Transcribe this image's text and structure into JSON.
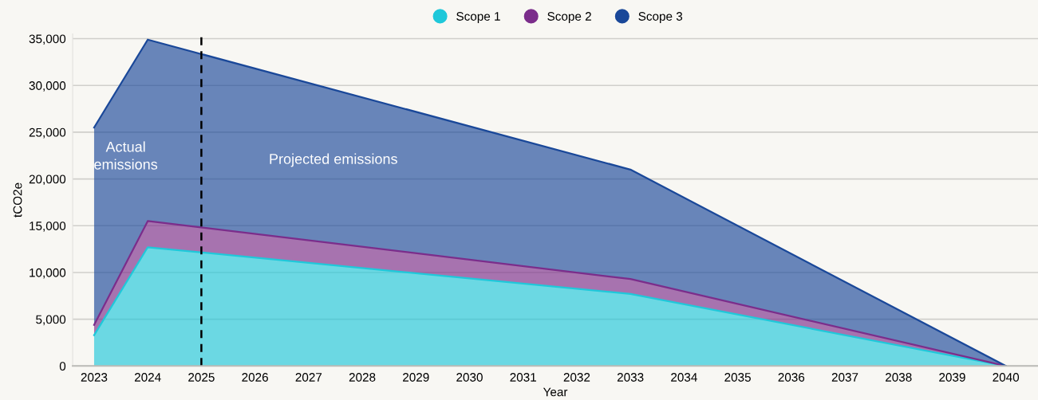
{
  "chart_data": {
    "type": "area",
    "stacked": true,
    "xlabel": "Year",
    "ylabel": "tCO2e",
    "x": [
      2023,
      2024,
      2033,
      2040
    ],
    "series": [
      {
        "name": "Scope 1",
        "color": "#1fc8da",
        "values": [
          3300,
          12700,
          7700,
          0
        ]
      },
      {
        "name": "Scope 2",
        "color": "#7b2d8b",
        "values": [
          1100,
          2800,
          1600,
          0
        ]
      },
      {
        "name": "Scope 3",
        "color": "#1a4899",
        "values": [
          21100,
          19400,
          11700,
          0
        ]
      }
    ],
    "xlim": [
      2022.6,
      2040.6
    ],
    "xticks": [
      2023,
      2024,
      2025,
      2026,
      2027,
      2028,
      2029,
      2030,
      2031,
      2032,
      2033,
      2034,
      2035,
      2036,
      2037,
      2038,
      2039,
      2040
    ],
    "ylim": [
      0,
      35500
    ],
    "yticks": [
      {
        "value": 0,
        "label": "0"
      },
      {
        "value": 5000,
        "label": "5,000"
      },
      {
        "value": 10000,
        "label": "10,000"
      },
      {
        "value": 15000,
        "label": "15,000"
      },
      {
        "value": 20000,
        "label": "20,000"
      },
      {
        "value": 25000,
        "label": "25,000"
      },
      {
        "value": 30000,
        "label": "30,000"
      },
      {
        "value": 35000,
        "label": "35,000"
      }
    ],
    "ref_lines": [
      {
        "axis": "x",
        "value": 2025,
        "color": "#000000",
        "line_style": "dashed"
      }
    ],
    "annotations": [
      "Actual\nemissions",
      "Projected emissions"
    ],
    "grid": "y",
    "legend": "top"
  }
}
